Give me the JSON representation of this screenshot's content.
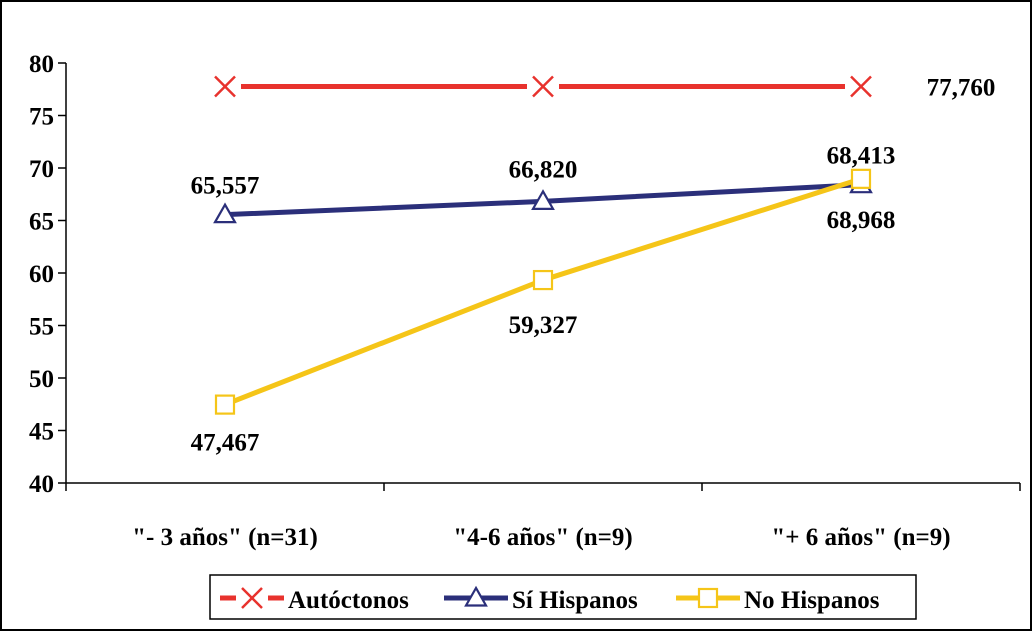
{
  "chart_data": {
    "type": "line",
    "categories": [
      "\"- 3 años\" (n=31)",
      "\"4-6 años\" (n=9)",
      "\"+ 6 años\" (n=9)"
    ],
    "ylim": [
      40,
      80
    ],
    "yticks": [
      40,
      45,
      50,
      55,
      60,
      65,
      70,
      75,
      80
    ],
    "grid": false,
    "legend_position": "bottom",
    "series": [
      {
        "name": "Autóctonos",
        "values": [
          77.76,
          77.76,
          77.76
        ],
        "labels": [
          "",
          "",
          "77,760"
        ],
        "color": "#e8322d",
        "marker": "x"
      },
      {
        "name": "Sí Hispanos",
        "values": [
          65.557,
          66.82,
          68.413
        ],
        "labels": [
          "65,557",
          "66,820",
          "68,413"
        ],
        "color": "#2b2f7a",
        "marker": "triangle"
      },
      {
        "name": "No Hispanos",
        "values": [
          47.467,
          59.327,
          68.968
        ],
        "labels": [
          "47,467",
          "59,327",
          "68,968"
        ],
        "color": "#f5c518",
        "marker": "square"
      }
    ]
  }
}
